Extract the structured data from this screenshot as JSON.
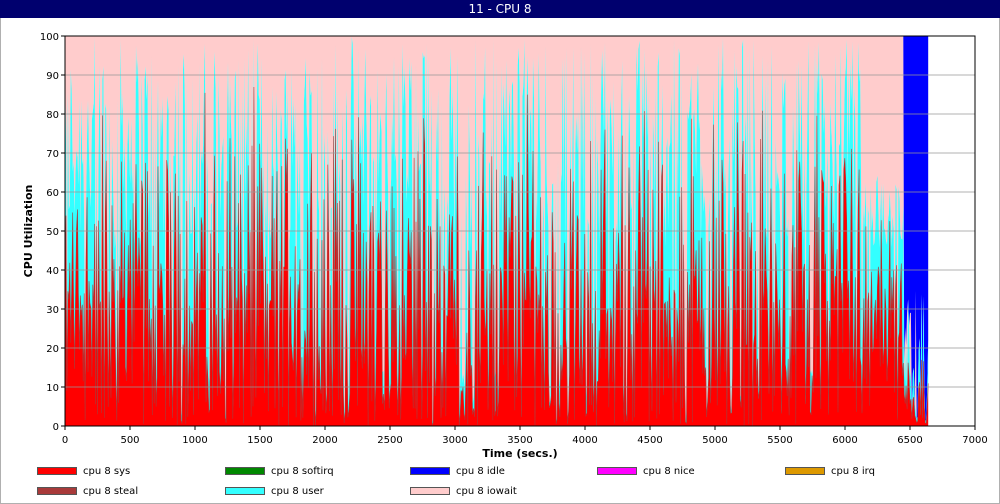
{
  "window_title": "11 - CPU 8",
  "chart_data": {
    "type": "area",
    "title": "",
    "xlabel": "Time (secs.)",
    "ylabel": "CPU Utilization",
    "xlim": [
      0,
      7000
    ],
    "ylim": [
      0,
      100
    ],
    "x_ticks": [
      "0",
      "500",
      "1000",
      "1500",
      "2000",
      "2500",
      "3000",
      "3500",
      "4000",
      "4500",
      "5000",
      "5500",
      "6000",
      "6500",
      "7000"
    ],
    "y_ticks": [
      "0",
      "10",
      "20",
      "30",
      "40",
      "50",
      "60",
      "70",
      "80",
      "90",
      "100"
    ],
    "grid": "horizontal",
    "legend_position": "bottom",
    "x_end": 6640,
    "series": [
      {
        "name": "cpu 8 sys",
        "color": "#ff0000"
      },
      {
        "name": "cpu 8 softirq",
        "color": "#008800"
      },
      {
        "name": "cpu 8 idle",
        "color": "#0000ff"
      },
      {
        "name": "cpu 8 nice",
        "color": "#ff00ff"
      },
      {
        "name": "cpu 8 irq",
        "color": "#dd9900"
      },
      {
        "name": "cpu 8 steal",
        "color": "#a83a3a"
      },
      {
        "name": "cpu 8 user",
        "color": "#33ffff"
      },
      {
        "name": "cpu 8 iowait",
        "color": "#ffcccc"
      }
    ],
    "note_values": "sys and user fluctuate rapidly between 0 and ~100 across 0-6640 s; iowait fills remainder to 100; idle appears near 6450-6640 s"
  }
}
